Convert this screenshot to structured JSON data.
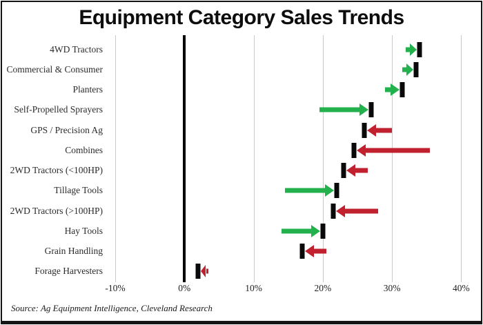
{
  "window": {
    "title": "Equipment Category Sales Trends"
  },
  "chart_data": {
    "type": "bar",
    "variant": "directional_arrow_dumbbell",
    "title": "Equipment Category Sales Trends",
    "categories": [
      "4WD Tractors",
      "Commercial & Consumer",
      "Planters",
      "Self-Propelled Sprayers",
      "GPS / Precision Ag",
      "Combines",
      "2WD Tractors (<100HP)",
      "Tillage Tools",
      "2WD Tractors (>100HP)",
      "Hay Tools",
      "Grain Handling",
      "Forage Harvesters"
    ],
    "series": [
      {
        "name": "arrow_tail_pct",
        "values": [
          32,
          31.5,
          29,
          19.5,
          30,
          35.5,
          26.5,
          14.5,
          28,
          14,
          20.5,
          3.5
        ]
      },
      {
        "name": "current_tick_pct",
        "values": [
          34,
          33.5,
          31.5,
          27,
          26,
          24.5,
          23,
          22,
          21.5,
          20,
          17,
          2
        ]
      }
    ],
    "directions": [
      "up",
      "up",
      "up",
      "up",
      "down",
      "down",
      "down",
      "up",
      "down",
      "up",
      "down",
      "down"
    ],
    "x_ticks": [
      {
        "label": "-10%",
        "value": -10
      },
      {
        "label": "0%",
        "value": 0
      },
      {
        "label": "10%",
        "value": 10
      },
      {
        "label": "20%",
        "value": 20
      },
      {
        "label": "30%",
        "value": 30
      },
      {
        "label": "40%",
        "value": 40
      }
    ],
    "xlim": [
      -11,
      42.25
    ],
    "grid": "vertical-light",
    "legend": "none",
    "colors": {
      "increase": "#22B14C",
      "decrease": "#C1202F",
      "tick": "#0a0a0a",
      "gridline": "#c9c9c9",
      "zero_line": "#000000"
    },
    "source_note": "Source: Ag Equipment Intelligence, Cleveland Research"
  }
}
